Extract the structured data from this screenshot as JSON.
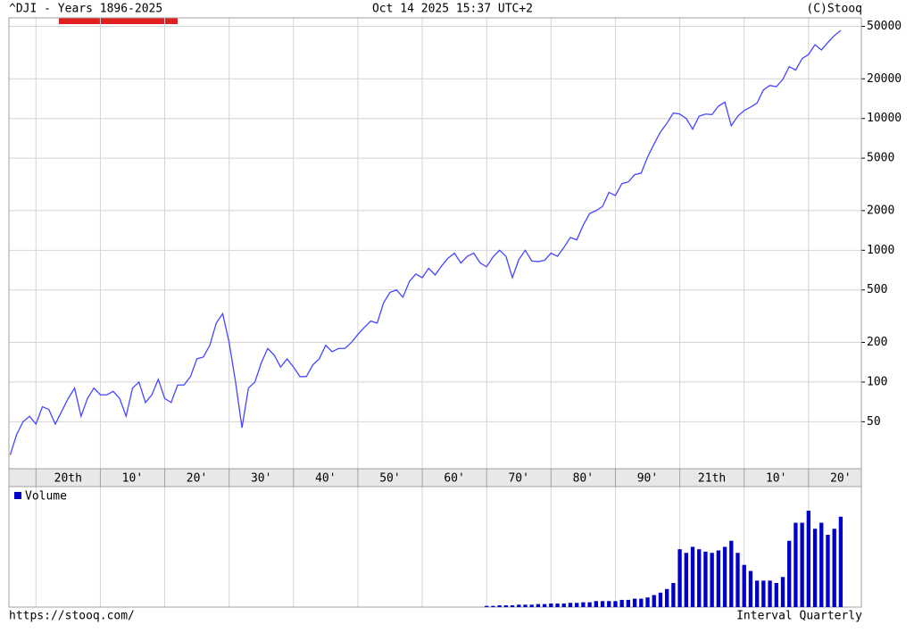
{
  "chart_data": {
    "type": "line",
    "title": "^DJI - Years 1896-2025",
    "date": "Oct 14 2025 15:37 UTC+2",
    "credit": "(C)Stooq",
    "url": "https://stooq.com/",
    "interval": "Interval Quarterly",
    "log_y": true,
    "grid": true,
    "xlim": [
      1895.8,
      2028.2
    ],
    "ylim": [
      22,
      58000
    ],
    "yticks": [
      50,
      100,
      200,
      500,
      1000,
      2000,
      5000,
      10000,
      20000,
      50000
    ],
    "xticks": [
      {
        "value": 1900,
        "label": "20th"
      },
      {
        "value": 1910,
        "label": "10'"
      },
      {
        "value": 1920,
        "label": "20'"
      },
      {
        "value": 1930,
        "label": "30'"
      },
      {
        "value": 1940,
        "label": "40'"
      },
      {
        "value": 1950,
        "label": "50'"
      },
      {
        "value": 1960,
        "label": "60'"
      },
      {
        "value": 1970,
        "label": "70'"
      },
      {
        "value": 1980,
        "label": "80'"
      },
      {
        "value": 1990,
        "label": "90'"
      },
      {
        "value": 2000,
        "label": "21th"
      },
      {
        "value": 2010,
        "label": "10'"
      },
      {
        "value": 2020,
        "label": "20'"
      }
    ],
    "x": [
      1896,
      1897,
      1898,
      1899,
      1900,
      1901,
      1902,
      1903,
      1904,
      1905,
      1906,
      1907,
      1908,
      1909,
      1910,
      1911,
      1912,
      1913,
      1914,
      1915,
      1916,
      1917,
      1918,
      1919,
      1920,
      1921,
      1922,
      1923,
      1924,
      1925,
      1926,
      1927,
      1928,
      1929,
      1930,
      1931,
      1932,
      1933,
      1934,
      1935,
      1936,
      1937,
      1938,
      1939,
      1940,
      1941,
      1942,
      1943,
      1944,
      1945,
      1946,
      1947,
      1948,
      1949,
      1950,
      1951,
      1952,
      1953,
      1954,
      1955,
      1956,
      1957,
      1958,
      1959,
      1960,
      1961,
      1962,
      1963,
      1964,
      1965,
      1966,
      1967,
      1968,
      1969,
      1970,
      1971,
      1972,
      1973,
      1974,
      1975,
      1976,
      1977,
      1978,
      1979,
      1980,
      1981,
      1982,
      1983,
      1984,
      1985,
      1986,
      1987,
      1988,
      1989,
      1990,
      1991,
      1992,
      1993,
      1994,
      1995,
      1996,
      1997,
      1998,
      1999,
      2000,
      2001,
      2002,
      2003,
      2004,
      2005,
      2006,
      2007,
      2008,
      2009,
      2010,
      2011,
      2012,
      2013,
      2014,
      2015,
      2016,
      2017,
      2018,
      2019,
      2020,
      2021,
      2022,
      2023,
      2024,
      2025
    ],
    "series": [
      {
        "color": "#4646ff",
        "values": [
          28,
          40,
          50,
          55,
          48,
          65,
          62,
          48,
          60,
          75,
          90,
          55,
          75,
          90,
          80,
          80,
          85,
          75,
          55,
          90,
          100,
          70,
          80,
          105,
          75,
          70,
          95,
          95,
          110,
          150,
          155,
          190,
          280,
          330,
          200,
          100,
          45,
          90,
          100,
          140,
          180,
          160,
          130,
          150,
          130,
          110,
          110,
          135,
          150,
          190,
          170,
          180,
          180,
          200,
          230,
          260,
          290,
          280,
          400,
          480,
          500,
          440,
          580,
          660,
          620,
          730,
          650,
          760,
          870,
          950,
          800,
          900,
          950,
          800,
          750,
          890,
          1000,
          900,
          620,
          850,
          1000,
          830,
          820,
          840,
          950,
          900,
          1050,
          1250,
          1200,
          1550,
          1900,
          2000,
          2150,
          2750,
          2600,
          3200,
          3300,
          3750,
          3850,
          5100,
          6400,
          7900,
          9200,
          11000,
          10800,
          10000,
          8300,
          10400,
          10800,
          10700,
          12400,
          13300,
          8800,
          10400,
          11500,
          12200,
          13100,
          16500,
          17800,
          17400,
          19800,
          24700,
          23300,
          28500,
          30600,
          36300,
          33100,
          37700,
          42500,
          46500
        ]
      }
    ],
    "volume": {
      "name": "Volume",
      "color": "#0000cc",
      "ylim": [
        0,
        100
      ],
      "x": [
        1970,
        1971,
        1972,
        1973,
        1974,
        1975,
        1976,
        1977,
        1978,
        1979,
        1980,
        1981,
        1982,
        1983,
        1984,
        1985,
        1986,
        1987,
        1988,
        1989,
        1990,
        1991,
        1992,
        1993,
        1994,
        1995,
        1996,
        1997,
        1998,
        1999,
        2000,
        2001,
        2002,
        2003,
        2004,
        2005,
        2006,
        2007,
        2008,
        2009,
        2010,
        2011,
        2012,
        2013,
        2014,
        2015,
        2016,
        2017,
        2018,
        2019,
        2020,
        2021,
        2022,
        2023,
        2024,
        2025
      ],
      "values": [
        1,
        1,
        1.5,
        1.5,
        1.5,
        2,
        2,
        2,
        2.5,
        2.5,
        3,
        3,
        3,
        3.5,
        3.5,
        4,
        4,
        5,
        5,
        5,
        5,
        6,
        6,
        7,
        7,
        8,
        10,
        12,
        15,
        20,
        48,
        45,
        50,
        48,
        46,
        45,
        47,
        50,
        55,
        45,
        35,
        30,
        22,
        22,
        22,
        20,
        25,
        55,
        70,
        70,
        80,
        65,
        70,
        60,
        65,
        75
      ]
    }
  }
}
